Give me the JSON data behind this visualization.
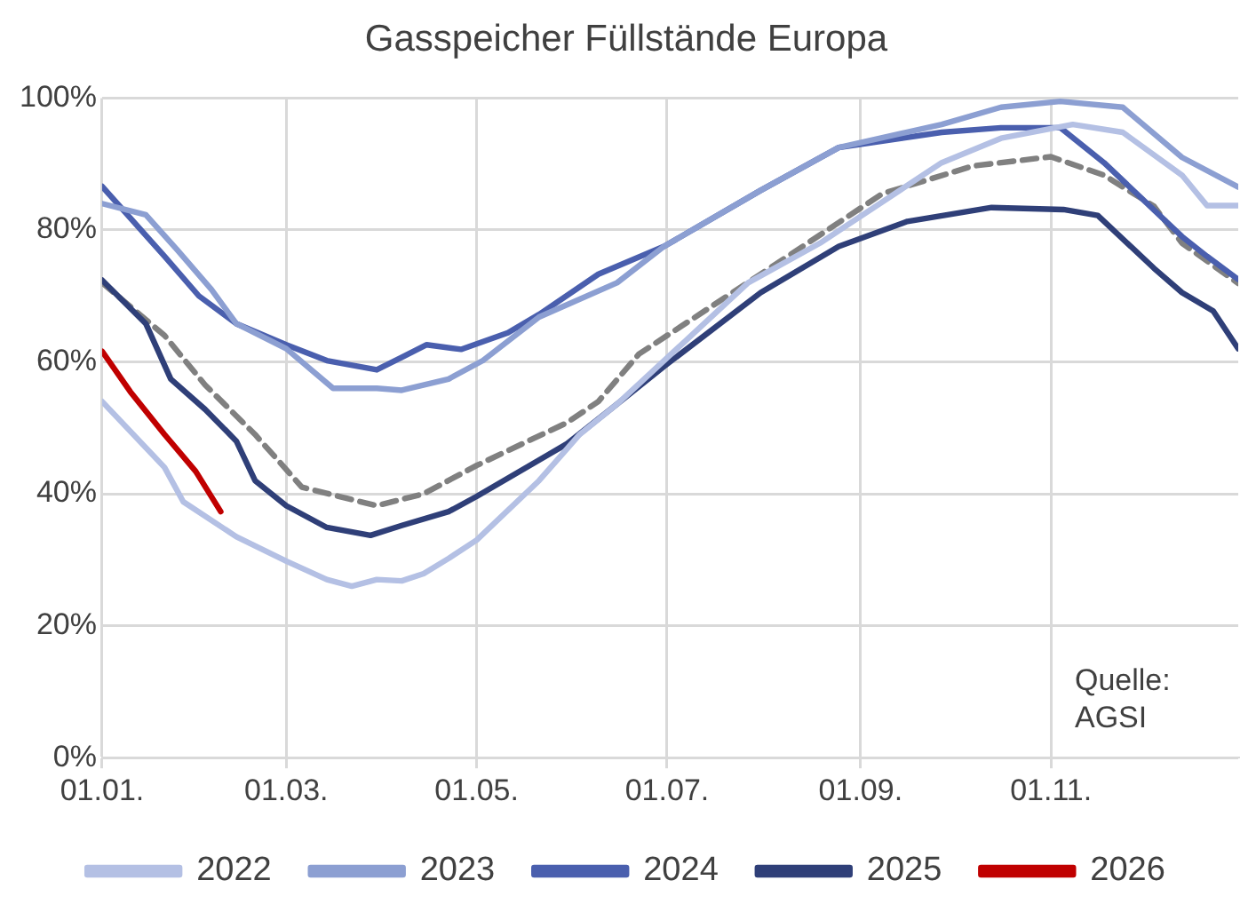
{
  "chart_data": {
    "type": "line",
    "title": "Gasspeicher Füllstände Europa",
    "annotations": [
      "Quelle: AGSI"
    ],
    "xlim": [
      "--01-01",
      "--12-31"
    ],
    "xticks": [
      {
        "value": "--01-01",
        "label": "01.01."
      },
      {
        "value": "--03-01",
        "label": "01.03."
      },
      {
        "value": "--05-01",
        "label": "01.05."
      },
      {
        "value": "--07-01",
        "label": "01.07."
      },
      {
        "value": "--09-01",
        "label": "01.09."
      },
      {
        "value": "--11-01",
        "label": "01.11."
      }
    ],
    "ylim": [
      0,
      100
    ],
    "yticks": [
      {
        "value": 0,
        "label": "0%"
      },
      {
        "value": 20,
        "label": "20%"
      },
      {
        "value": 40,
        "label": "40%"
      },
      {
        "value": 60,
        "label": "60%"
      },
      {
        "value": 80,
        "label": "80%"
      },
      {
        "value": 100,
        "label": "100%"
      }
    ],
    "grid": true,
    "legend": "bottom",
    "marker": "none",
    "series": [
      {
        "name": "2022",
        "color": "#b4c0e4",
        "x": [
          "--01-01",
          "--01-21",
          "--01-27",
          "--02-13",
          "--03-01",
          "--03-14",
          "--03-22",
          "--03-30",
          "--04-07",
          "--04-14",
          "--04-22",
          "--05-01",
          "--05-21",
          "--06-03",
          "--06-15",
          "--07-27",
          "--08-19",
          "--09-27",
          "--10-16",
          "--11-08",
          "--11-24",
          "--12-13",
          "--12-21",
          "--12-31"
        ],
        "values": [
          54,
          44,
          38.8,
          33.5,
          29.8,
          27,
          26,
          27,
          26.8,
          27.9,
          30.2,
          33,
          42,
          49,
          53.6,
          72,
          78,
          90.2,
          93.9,
          96,
          94.8,
          88.3,
          83.7,
          83.7
        ]
      },
      {
        "name": "2023",
        "color": "#8c9fd2",
        "x": [
          "--01-01",
          "--01-15",
          "--01-25",
          "--02-05",
          "--02-13",
          "--03-01",
          "--03-16",
          "--03-30",
          "--04-07",
          "--04-22",
          "--05-03",
          "--05-21",
          "--06-15",
          "--06-30",
          "--07-31",
          "--08-25",
          "--09-27",
          "--10-16",
          "--11-04",
          "--11-24",
          "--12-13",
          "--12-31"
        ],
        "values": [
          84,
          82.3,
          77,
          71,
          65.8,
          62,
          56,
          56,
          55.7,
          57.4,
          60.2,
          66.8,
          72,
          77.5,
          86,
          92.5,
          96,
          98.6,
          99.5,
          98.6,
          91,
          86.5
        ]
      },
      {
        "name": "2024",
        "color": "#4a5fae",
        "x": [
          "--01-01",
          "--01-21",
          "--02-01",
          "--02-13",
          "--03-01",
          "--03-14",
          "--03-30",
          "--04-07",
          "--04-15",
          "--04-26",
          "--05-11",
          "--05-21",
          "--06-09",
          "--06-30",
          "--07-31",
          "--08-25",
          "--09-27",
          "--10-16",
          "--11-04",
          "--11-18",
          "--12-13",
          "--12-21",
          "--12-31"
        ],
        "values": [
          86.6,
          76,
          70,
          65.8,
          62.6,
          60.2,
          58.8,
          60.7,
          62.6,
          61.9,
          64.4,
          67.2,
          73.3,
          77.5,
          86,
          92.5,
          94.8,
          95.5,
          95.5,
          90.2,
          79,
          76,
          72.5
        ]
      },
      {
        "name": "2025",
        "color": "#2f3f78",
        "x": [
          "--01-01",
          "--01-15",
          "--01-23",
          "--02-03",
          "--02-13",
          "--02-19",
          "--03-01",
          "--03-14",
          "--03-28",
          "--04-07",
          "--04-22",
          "--05-01",
          "--05-30",
          "--06-15",
          "--06-30",
          "--07-31",
          "--08-25",
          "--09-16",
          "--10-13",
          "--11-05",
          "--11-16",
          "--12-04",
          "--12-13",
          "--12-23",
          "--12-31"
        ],
        "values": [
          72.4,
          65.8,
          57.4,
          52.8,
          48,
          42,
          38.2,
          34.9,
          33.7,
          35.2,
          37.3,
          39.6,
          47.6,
          53.6,
          59.3,
          70.5,
          77.5,
          81.3,
          83.4,
          83.1,
          82.2,
          74.2,
          70.5,
          67.7,
          62
        ]
      },
      {
        "name": "2026",
        "color": "#c00000",
        "x": [
          "--01-01",
          "--01-10",
          "--01-21",
          "--01-31",
          "--02-08"
        ],
        "values": [
          61.6,
          55.5,
          49,
          43.4,
          37.3
        ]
      },
      {
        "color": "#808080",
        "line_style": "dashed",
        "x": [
          "--01-01",
          "--01-21",
          "--02-03",
          "--02-19",
          "--03-06",
          "--03-30",
          "--04-14",
          "--05-01",
          "--05-30",
          "--06-09",
          "--06-22",
          "--07-31",
          "--09-08",
          "--10-07",
          "--11-01",
          "--11-18",
          "--12-04",
          "--12-13",
          "--12-31"
        ],
        "values": [
          72,
          64,
          56.5,
          49,
          41,
          38.2,
          40,
          44.3,
          50.8,
          54,
          61.2,
          73.3,
          85.5,
          89.7,
          91.1,
          88.3,
          83.6,
          78,
          71.9
        ]
      }
    ]
  }
}
